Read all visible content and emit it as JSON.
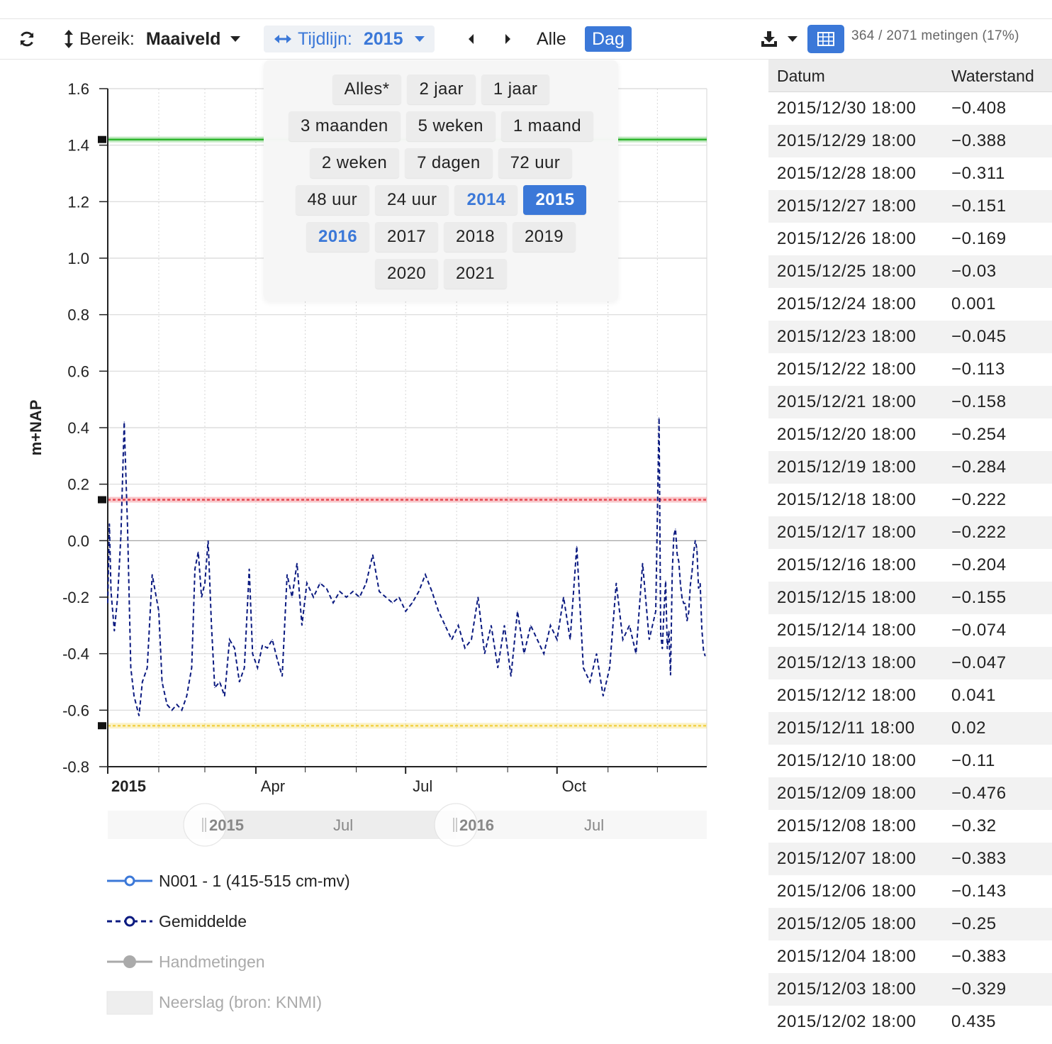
{
  "toolbar": {
    "bereik_label": "Bereik:",
    "bereik_value": "Maaiveld",
    "tijdlijn_label": "Tijdlijn:",
    "tijdlijn_value": "2015",
    "alle_label": "Alle",
    "dag_label": "Dag",
    "count_text": "364 / 2071 metingen (17%)",
    "icons": [
      "refresh-icon",
      "vertical-arrows-icon",
      "caret-down-icon",
      "horizontal-arrows-icon",
      "prev-icon",
      "next-icon",
      "download-icon",
      "table-icon"
    ]
  },
  "dropdown": {
    "rows": [
      [
        {
          "label": "Alles*",
          "state": "normal"
        },
        {
          "label": "2 jaar",
          "state": "normal"
        },
        {
          "label": "1 jaar",
          "state": "normal"
        }
      ],
      [
        {
          "label": "3 maanden",
          "state": "normal"
        },
        {
          "label": "5 weken",
          "state": "normal"
        },
        {
          "label": "1 maand",
          "state": "normal"
        }
      ],
      [
        {
          "label": "2 weken",
          "state": "normal"
        },
        {
          "label": "7 dagen",
          "state": "normal"
        },
        {
          "label": "72 uur",
          "state": "normal"
        }
      ],
      [
        {
          "label": "48 uur",
          "state": "normal"
        },
        {
          "label": "24 uur",
          "state": "normal"
        },
        {
          "label": "2014",
          "state": "accent"
        },
        {
          "label": "2015",
          "state": "active"
        }
      ],
      [
        {
          "label": "2016",
          "state": "accent"
        },
        {
          "label": "2017",
          "state": "normal"
        },
        {
          "label": "2018",
          "state": "normal"
        },
        {
          "label": "2019",
          "state": "normal"
        }
      ],
      [
        {
          "label": "2020",
          "state": "normal"
        },
        {
          "label": "2021",
          "state": "normal"
        }
      ]
    ]
  },
  "chart_data": {
    "type": "line",
    "ylabel": "m+NAP",
    "ylim": [
      -0.8,
      1.6
    ],
    "yticks": [
      "1.6",
      "1.4",
      "1.2",
      "1.0",
      "0.8",
      "0.6",
      "0.4",
      "0.2",
      "0.0",
      "-0.2",
      "-0.4",
      "-0.6",
      "-0.8"
    ],
    "xlim": [
      "2015-01-01",
      "2015-12-31"
    ],
    "xticks": [
      {
        "date": "2015-01-01",
        "label": "2015",
        "bold": true
      },
      {
        "date": "2015-04-01",
        "label": "Apr",
        "bold": false
      },
      {
        "date": "2015-07-01",
        "label": "Jul",
        "bold": false
      },
      {
        "date": "2015-10-01",
        "label": "Oct",
        "bold": false
      }
    ],
    "grid": true,
    "reference_lines": [
      {
        "value": 1.42,
        "color": "#2db52d",
        "style": "solid"
      },
      {
        "value": 0.145,
        "color": "#e8454f",
        "style": "dotted"
      },
      {
        "value": -0.655,
        "color": "#f2d34a",
        "style": "dotted"
      }
    ],
    "navigator": {
      "labels": [
        "2015",
        "Jul",
        "2016",
        "Jul"
      ]
    },
    "legend": [
      {
        "name": "N001 - 1 (415-515 cm-mv)",
        "color": "#3b78d8",
        "style": "solid",
        "enabled": true
      },
      {
        "name": "Gemiddelde",
        "color": "#0b1a80",
        "style": "dashed",
        "enabled": true
      },
      {
        "name": "Handmetingen",
        "color": "#aaaaaa",
        "style": "solid",
        "enabled": false
      },
      {
        "name": "Neerslag (bron: KNMI)",
        "color": "#eeeeee",
        "style": "area",
        "enabled": false
      }
    ],
    "series": [
      {
        "name": "Gemiddelde",
        "color": "#0b1a80",
        "points": [
          [
            "2015-01-01",
            -0.22
          ],
          [
            "2015-01-02",
            0.06
          ],
          [
            "2015-01-03",
            -0.18
          ],
          [
            "2015-01-05",
            -0.32
          ],
          [
            "2015-01-07",
            -0.2
          ],
          [
            "2015-01-09",
            0.02
          ],
          [
            "2015-01-11",
            0.42
          ],
          [
            "2015-01-13",
            0.05
          ],
          [
            "2015-01-15",
            -0.45
          ],
          [
            "2015-01-17",
            -0.55
          ],
          [
            "2015-01-20",
            -0.62
          ],
          [
            "2015-01-22",
            -0.5
          ],
          [
            "2015-01-25",
            -0.45
          ],
          [
            "2015-01-28",
            -0.12
          ],
          [
            "2015-02-01",
            -0.25
          ],
          [
            "2015-02-03",
            -0.5
          ],
          [
            "2015-02-06",
            -0.58
          ],
          [
            "2015-02-09",
            -0.6
          ],
          [
            "2015-02-12",
            -0.58
          ],
          [
            "2015-02-15",
            -0.6
          ],
          [
            "2015-02-18",
            -0.55
          ],
          [
            "2015-02-21",
            -0.45
          ],
          [
            "2015-02-23",
            -0.1
          ],
          [
            "2015-02-25",
            -0.04
          ],
          [
            "2015-02-27",
            -0.2
          ],
          [
            "2015-03-01",
            -0.15
          ],
          [
            "2015-03-03",
            0.0
          ],
          [
            "2015-03-05",
            -0.3
          ],
          [
            "2015-03-07",
            -0.52
          ],
          [
            "2015-03-10",
            -0.5
          ],
          [
            "2015-03-13",
            -0.55
          ],
          [
            "2015-03-16",
            -0.35
          ],
          [
            "2015-03-19",
            -0.38
          ],
          [
            "2015-03-22",
            -0.5
          ],
          [
            "2015-03-25",
            -0.45
          ],
          [
            "2015-03-28",
            -0.1
          ],
          [
            "2015-03-30",
            -0.4
          ],
          [
            "2015-04-02",
            -0.45
          ],
          [
            "2015-04-05",
            -0.37
          ],
          [
            "2015-04-08",
            -0.38
          ],
          [
            "2015-04-11",
            -0.35
          ],
          [
            "2015-04-14",
            -0.42
          ],
          [
            "2015-04-17",
            -0.48
          ],
          [
            "2015-04-20",
            -0.12
          ],
          [
            "2015-04-23",
            -0.2
          ],
          [
            "2015-04-26",
            -0.08
          ],
          [
            "2015-04-29",
            -0.3
          ],
          [
            "2015-05-02",
            -0.15
          ],
          [
            "2015-05-06",
            -0.2
          ],
          [
            "2015-05-10",
            -0.15
          ],
          [
            "2015-05-14",
            -0.17
          ],
          [
            "2015-05-18",
            -0.22
          ],
          [
            "2015-05-22",
            -0.18
          ],
          [
            "2015-05-26",
            -0.2
          ],
          [
            "2015-05-30",
            -0.18
          ],
          [
            "2015-06-03",
            -0.2
          ],
          [
            "2015-06-07",
            -0.15
          ],
          [
            "2015-06-11",
            -0.05
          ],
          [
            "2015-06-15",
            -0.18
          ],
          [
            "2015-06-19",
            -0.2
          ],
          [
            "2015-06-23",
            -0.22
          ],
          [
            "2015-06-27",
            -0.2
          ],
          [
            "2015-07-01",
            -0.25
          ],
          [
            "2015-07-05",
            -0.22
          ],
          [
            "2015-07-09",
            -0.18
          ],
          [
            "2015-07-13",
            -0.12
          ],
          [
            "2015-07-17",
            -0.18
          ],
          [
            "2015-07-21",
            -0.25
          ],
          [
            "2015-07-25",
            -0.3
          ],
          [
            "2015-07-29",
            -0.35
          ],
          [
            "2015-08-02",
            -0.3
          ],
          [
            "2015-08-06",
            -0.38
          ],
          [
            "2015-08-10",
            -0.35
          ],
          [
            "2015-08-14",
            -0.2
          ],
          [
            "2015-08-18",
            -0.4
          ],
          [
            "2015-08-22",
            -0.3
          ],
          [
            "2015-08-26",
            -0.45
          ],
          [
            "2015-08-30",
            -0.3
          ],
          [
            "2015-09-03",
            -0.48
          ],
          [
            "2015-09-07",
            -0.25
          ],
          [
            "2015-09-11",
            -0.4
          ],
          [
            "2015-09-15",
            -0.3
          ],
          [
            "2015-09-19",
            -0.35
          ],
          [
            "2015-09-23",
            -0.4
          ],
          [
            "2015-09-27",
            -0.3
          ],
          [
            "2015-10-01",
            -0.35
          ],
          [
            "2015-10-05",
            -0.2
          ],
          [
            "2015-10-09",
            -0.35
          ],
          [
            "2015-10-13",
            -0.02
          ],
          [
            "2015-10-17",
            -0.45
          ],
          [
            "2015-10-21",
            -0.5
          ],
          [
            "2015-10-25",
            -0.4
          ],
          [
            "2015-10-29",
            -0.55
          ],
          [
            "2015-11-02",
            -0.45
          ],
          [
            "2015-11-06",
            -0.15
          ],
          [
            "2015-11-10",
            -0.35
          ],
          [
            "2015-11-14",
            -0.3
          ],
          [
            "2015-11-18",
            -0.4
          ],
          [
            "2015-11-22",
            -0.08
          ],
          [
            "2015-11-26",
            -0.35
          ],
          [
            "2015-11-30",
            -0.25
          ],
          [
            "2015-12-02",
            0.435
          ],
          [
            "2015-12-03",
            -0.329
          ],
          [
            "2015-12-04",
            -0.383
          ],
          [
            "2015-12-05",
            -0.25
          ],
          [
            "2015-12-06",
            -0.143
          ],
          [
            "2015-12-07",
            -0.383
          ],
          [
            "2015-12-08",
            -0.32
          ],
          [
            "2015-12-09",
            -0.476
          ],
          [
            "2015-12-10",
            -0.11
          ],
          [
            "2015-12-11",
            0.02
          ],
          [
            "2015-12-12",
            0.041
          ],
          [
            "2015-12-13",
            -0.047
          ],
          [
            "2015-12-14",
            -0.074
          ],
          [
            "2015-12-15",
            -0.155
          ],
          [
            "2015-12-16",
            -0.204
          ],
          [
            "2015-12-17",
            -0.222
          ],
          [
            "2015-12-18",
            -0.222
          ],
          [
            "2015-12-19",
            -0.284
          ],
          [
            "2015-12-20",
            -0.254
          ],
          [
            "2015-12-21",
            -0.158
          ],
          [
            "2015-12-22",
            -0.113
          ],
          [
            "2015-12-23",
            -0.045
          ],
          [
            "2015-12-24",
            0.001
          ],
          [
            "2015-12-25",
            -0.03
          ],
          [
            "2015-12-26",
            -0.169
          ],
          [
            "2015-12-27",
            -0.151
          ],
          [
            "2015-12-28",
            -0.311
          ],
          [
            "2015-12-29",
            -0.388
          ],
          [
            "2015-12-30",
            -0.408
          ]
        ]
      }
    ]
  },
  "table": {
    "headers": [
      "Datum",
      "Waterstand"
    ],
    "rows": [
      [
        "2015/12/30 18:00",
        "−0.408"
      ],
      [
        "2015/12/29 18:00",
        "−0.388"
      ],
      [
        "2015/12/28 18:00",
        "−0.311"
      ],
      [
        "2015/12/27 18:00",
        "−0.151"
      ],
      [
        "2015/12/26 18:00",
        "−0.169"
      ],
      [
        "2015/12/25 18:00",
        "−0.03"
      ],
      [
        "2015/12/24 18:00",
        "0.001"
      ],
      [
        "2015/12/23 18:00",
        "−0.045"
      ],
      [
        "2015/12/22 18:00",
        "−0.113"
      ],
      [
        "2015/12/21 18:00",
        "−0.158"
      ],
      [
        "2015/12/20 18:00",
        "−0.254"
      ],
      [
        "2015/12/19 18:00",
        "−0.284"
      ],
      [
        "2015/12/18 18:00",
        "−0.222"
      ],
      [
        "2015/12/17 18:00",
        "−0.222"
      ],
      [
        "2015/12/16 18:00",
        "−0.204"
      ],
      [
        "2015/12/15 18:00",
        "−0.155"
      ],
      [
        "2015/12/14 18:00",
        "−0.074"
      ],
      [
        "2015/12/13 18:00",
        "−0.047"
      ],
      [
        "2015/12/12 18:00",
        "0.041"
      ],
      [
        "2015/12/11 18:00",
        "0.02"
      ],
      [
        "2015/12/10 18:00",
        "−0.11"
      ],
      [
        "2015/12/09 18:00",
        "−0.476"
      ],
      [
        "2015/12/08 18:00",
        "−0.32"
      ],
      [
        "2015/12/07 18:00",
        "−0.383"
      ],
      [
        "2015/12/06 18:00",
        "−0.143"
      ],
      [
        "2015/12/05 18:00",
        "−0.25"
      ],
      [
        "2015/12/04 18:00",
        "−0.383"
      ],
      [
        "2015/12/03 18:00",
        "−0.329"
      ],
      [
        "2015/12/02 18:00",
        "0.435"
      ]
    ]
  }
}
